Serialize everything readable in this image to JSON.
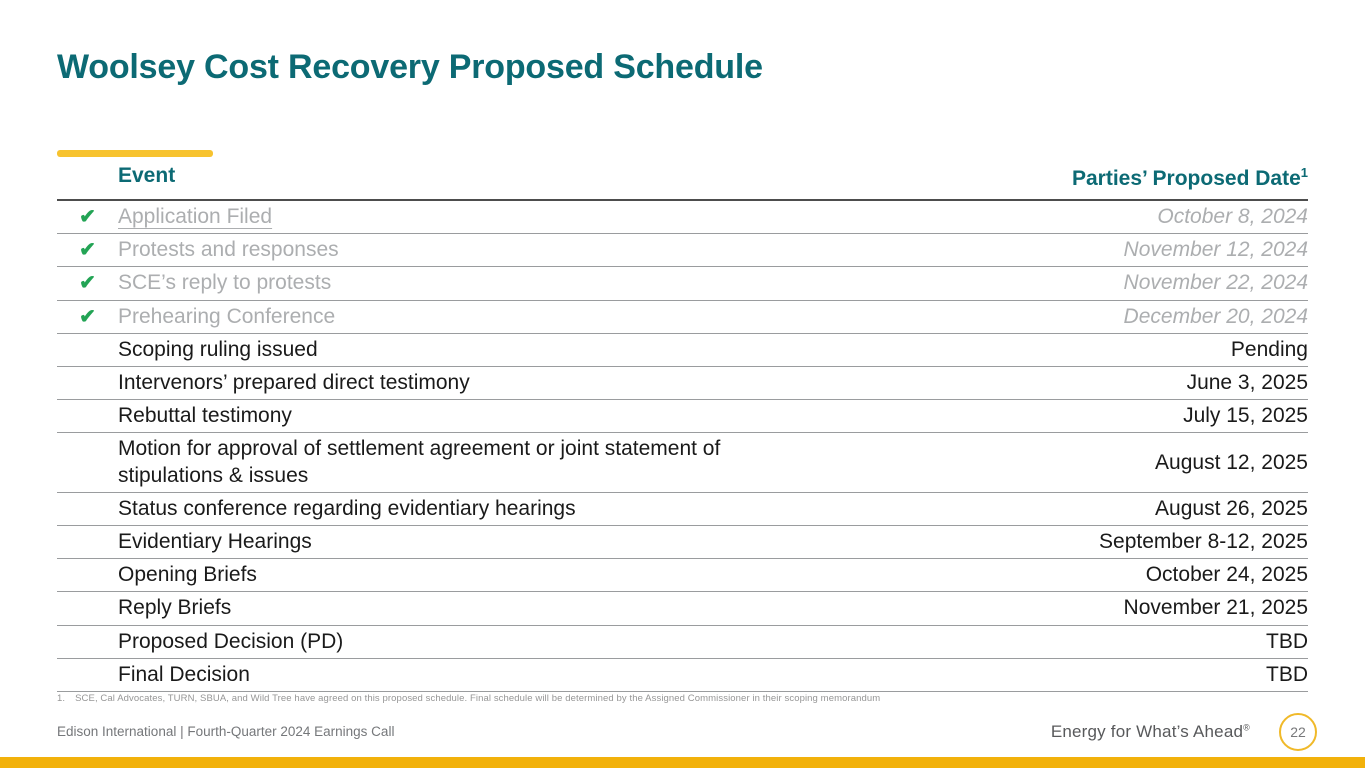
{
  "slide": {
    "title": "Woolsey Cost Recovery Proposed Schedule",
    "accent_color": "#F7C32F",
    "title_color": "#0C6A74"
  },
  "table": {
    "headers": {
      "event": "Event",
      "date": "Parties’ Proposed Date",
      "date_sup": "1"
    },
    "check_glyph": "✔",
    "check_icon_name": "check-icon",
    "check_color": "#23A455",
    "rows": [
      {
        "event": "Application Filed",
        "date": "October 8, 2024",
        "completed": true,
        "underlined": true
      },
      {
        "event": "Protests and responses",
        "date": "November 12, 2024",
        "completed": true
      },
      {
        "event": "SCE’s reply to protests",
        "date": "November 22, 2024",
        "completed": true
      },
      {
        "event": "Prehearing Conference",
        "date": "December 20, 2024",
        "completed": true
      },
      {
        "event": "Scoping ruling issued",
        "date": "Pending",
        "completed": false
      },
      {
        "event": "Intervenors’ prepared direct testimony",
        "date": "June 3, 2025",
        "completed": false
      },
      {
        "event": "Rebuttal testimony",
        "date": "July 15, 2025",
        "completed": false
      },
      {
        "event": "Motion for approval of settlement agreement or joint statement of\nstipulations & issues",
        "date": "August 12, 2025",
        "completed": false
      },
      {
        "event": "Status conference regarding evidentiary hearings",
        "date": "August 26, 2025",
        "completed": false
      },
      {
        "event": "Evidentiary Hearings",
        "date": "September 8-12, 2025",
        "completed": false
      },
      {
        "event": "Opening Briefs",
        "date": "October 24, 2025",
        "completed": false
      },
      {
        "event": "Reply Briefs",
        "date": "November 21, 2025",
        "completed": false
      },
      {
        "event": "Proposed Decision (PD)",
        "date": "TBD",
        "completed": false
      },
      {
        "event": "Final Decision",
        "date": "TBD",
        "completed": false
      }
    ]
  },
  "footnote": {
    "marker": "1.",
    "text": "SCE, Cal Advocates, TURN, SBUA, and Wild Tree have agreed on this proposed schedule. Final schedule will be determined by the Assigned Commissioner in their scoping memorandum"
  },
  "footer": {
    "left": "Edison International |  Fourth-Quarter 2024 Earnings Call",
    "tagline": "Energy for What’s Ahead",
    "tagline_mark": "®",
    "page_number": "22"
  }
}
